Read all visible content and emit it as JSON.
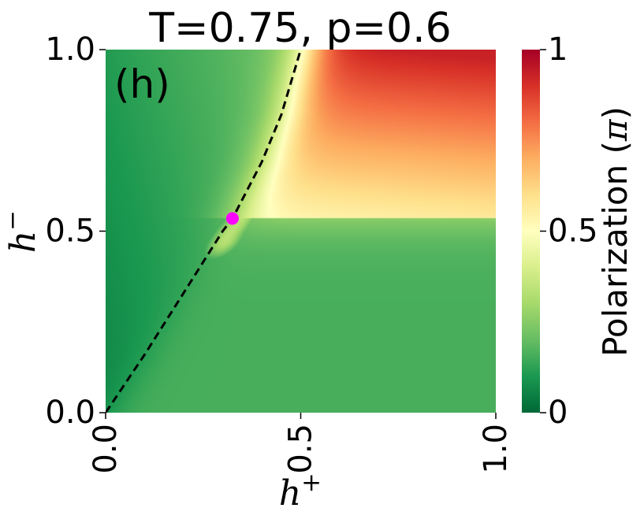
{
  "chart_data": {
    "type": "heatmap",
    "title": "T=0.75, p=0.6",
    "panel_label": "(h)",
    "xlabel_base": "h",
    "xlabel_sup": "+",
    "ylabel_base": "h",
    "ylabel_sup": "−",
    "xlim": [
      0.0,
      1.0
    ],
    "ylim": [
      0.0,
      1.0
    ],
    "xticks": [
      {
        "value": 0.0,
        "label": "0.0"
      },
      {
        "value": 0.5,
        "label": "0.5"
      },
      {
        "value": 1.0,
        "label": "1.0"
      }
    ],
    "yticks": [
      {
        "value": 0.0,
        "label": "0.0"
      },
      {
        "value": 0.5,
        "label": "0.5"
      },
      {
        "value": 1.0,
        "label": "1.0"
      }
    ],
    "colorbar": {
      "label": "Polarization",
      "label_symbol": "π",
      "range": [
        0,
        1
      ],
      "colormap": "RdYlGn_r",
      "ticks": [
        {
          "value": 0,
          "label": "0"
        },
        {
          "value": 0.5,
          "label": "0.5"
        },
        {
          "value": 1,
          "label": "1"
        }
      ],
      "colors": [
        "#006837",
        "#1a9850",
        "#66bd63",
        "#a6d96a",
        "#d9ef8b",
        "#ffffbf",
        "#fee08b",
        "#fdae61",
        "#f46d43",
        "#d73027",
        "#a50026"
      ]
    },
    "critical_line": {
      "style": "dashed",
      "color": "#000000",
      "x": [
        0.0,
        0.1,
        0.2,
        0.3,
        0.325,
        0.4,
        0.45,
        0.5
      ],
      "y": [
        0.0,
        0.16,
        0.33,
        0.5,
        0.535,
        0.69,
        0.82,
        1.0
      ]
    },
    "critical_point": {
      "x": 0.325,
      "y": 0.535,
      "color": "#ff00ff"
    },
    "grid": false
  }
}
